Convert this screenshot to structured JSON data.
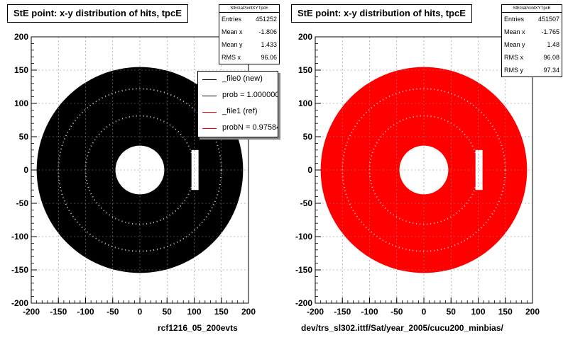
{
  "footer": {
    "date_text": ""
  },
  "chart_data": [
    {
      "type": "heatmap",
      "title": "StE point: x-y distribution of hits, tpcE",
      "xlabel": "rcf1216_05_200evts",
      "ylabel": "",
      "xlim": [
        -200,
        200
      ],
      "ylim": [
        -200,
        200
      ],
      "xticks": [
        -200,
        -150,
        -100,
        -50,
        0,
        50,
        100,
        150,
        200
      ],
      "yticks": [
        -200,
        -150,
        -100,
        -50,
        0,
        50,
        100,
        150,
        200
      ],
      "grid": true,
      "fill_color": "#000000",
      "stats": {
        "name": "StEGaPointXYTpcE",
        "entries": "451252",
        "mean_x": "-1.806",
        "mean_y": "1.433",
        "rms_x": "96.06",
        "rms_y": ""
      },
      "legend": {
        "placement": "top-right",
        "entries": [
          {
            "label": "_file0 (new)",
            "color": "#000000"
          },
          {
            "label": "prob = 1.000000",
            "color": "#000000"
          },
          {
            "label": "_file1 (ref)",
            "color": "#ff0000"
          },
          {
            "label": "probN = 0.975840",
            "color": "#ff0000"
          }
        ]
      },
      "distribution": {
        "outer_radius": 190,
        "inner_radius": 45,
        "rings": [
          100,
          150
        ]
      }
    },
    {
      "type": "heatmap",
      "title": "StE point: x-y distribution of hits, tpcE",
      "xlabel": "dev/trs_sl302.ittf/Sat/year_2005/cucu200_minbias/",
      "ylabel": "",
      "xlim": [
        -200,
        200
      ],
      "ylim": [
        -200,
        200
      ],
      "xticks": [
        -200,
        -150,
        -100,
        -50,
        0,
        50,
        100,
        150,
        200
      ],
      "yticks": [
        -200,
        -150,
        -100,
        -50,
        0,
        50,
        100,
        150,
        200
      ],
      "grid": true,
      "fill_color": "#ff0000",
      "stats": {
        "name": "StEGaPointXYTpcE",
        "entries": "451507",
        "mean_x": "-1.765",
        "mean_y": "1.48",
        "rms_x": "96.08",
        "rms_y": "97.34"
      },
      "distribution": {
        "outer_radius": 190,
        "inner_radius": 45,
        "rings": [
          100,
          150
        ]
      }
    }
  ]
}
